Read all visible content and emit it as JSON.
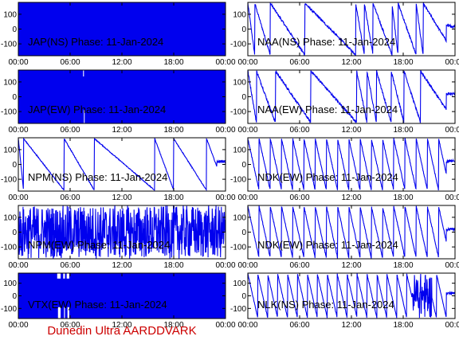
{
  "footer": "Dunedin Ultra AARDDVARK",
  "colors": {
    "trace": "#0000ee",
    "footer": "#cc0000",
    "axes": "#000000"
  },
  "chart_data": [
    {
      "type": "line",
      "title": "JAP(NS) Phase: 11-Jan-2024",
      "x_ticks": [
        "00:00",
        "06:00",
        "12:00",
        "18:00",
        "00:00"
      ],
      "y_ticks": [
        100,
        0,
        -100
      ],
      "ylim": [
        -180,
        180
      ],
      "xlim": [
        0,
        24
      ],
      "pattern": "fill",
      "params": {}
    },
    {
      "type": "line",
      "title": "NAA(NS) Phase: 11-Jan-2024",
      "x_ticks": [
        "00:00",
        "06:00",
        "12:00",
        "18:00",
        "00:00"
      ],
      "y_ticks": [
        100,
        0,
        -100
      ],
      "ylim": [
        -180,
        180
      ],
      "xlim": [
        0,
        24
      ],
      "pattern": "sawtooth",
      "params": {
        "resets": [
          0,
          0.8,
          2.6,
          6.6,
          12.5,
          13.5,
          14.5,
          16.7,
          17.4,
          19.5,
          20.3
        ],
        "amp": 14
      }
    },
    {
      "type": "line",
      "title": "JAP(EW) Phase: 11-Jan-2024",
      "x_ticks": [
        "00:00",
        "06:00",
        "12:00",
        "18:00",
        "00:00"
      ],
      "y_ticks": [
        100,
        0,
        -100
      ],
      "ylim": [
        -180,
        180
      ],
      "xlim": [
        0,
        24
      ],
      "pattern": "fill",
      "params": {
        "notch": [
          7.5,
          7.6
        ]
      }
    },
    {
      "type": "line",
      "title": "NAA(EW) Phase: 11-Jan-2024",
      "x_ticks": [
        "00:00",
        "06:00",
        "12:00",
        "18:00",
        "00:00"
      ],
      "y_ticks": [
        100,
        0,
        -100
      ],
      "ylim": [
        -180,
        180
      ],
      "xlim": [
        0,
        24
      ],
      "pattern": "sawtooth",
      "params": {
        "resets": [
          0,
          1.0,
          3.2,
          7.3,
          12.6,
          13.8,
          14.9,
          16.6,
          18.1,
          20.0
        ],
        "amp": 16
      }
    },
    {
      "type": "line",
      "title": "NPM(NS) Phase: 11-Jan-2024",
      "x_ticks": [
        "00:00",
        "06:00",
        "12:00",
        "18:00",
        "00:00"
      ],
      "y_ticks": [
        100,
        0,
        -100
      ],
      "ylim": [
        -180,
        180
      ],
      "xlim": [
        0,
        24
      ],
      "pattern": "sawtooth",
      "params": {
        "resets": [
          0,
          0.6,
          5.3,
          8.8,
          15.8,
          18.0,
          21.8
        ],
        "amp": 6
      }
    },
    {
      "type": "line",
      "title": "NDK(EW) Phase: 11-Jan-2024",
      "x_ticks": [
        "00:00",
        "06:00",
        "12:00",
        "18:00",
        "00:00"
      ],
      "y_ticks": [
        100,
        0,
        -100
      ],
      "ylim": [
        -180,
        180
      ],
      "xlim": [
        0,
        24
      ],
      "pattern": "sawtooth",
      "params": {
        "period": 1.3,
        "amp": 10
      }
    },
    {
      "type": "line",
      "title": "NPM(EW) Phase: 11-Jan-2024",
      "x_ticks": [
        "00:00",
        "06:00",
        "12:00",
        "18:00",
        "00:00"
      ],
      "y_ticks": [
        100,
        0,
        -100
      ],
      "ylim": [
        -180,
        180
      ],
      "xlim": [
        0,
        24
      ],
      "pattern": "noise",
      "params": {
        "amp": 1
      }
    },
    {
      "type": "line",
      "title": "NDK(EW) Phase: 11-Jan-2024",
      "x_ticks": [
        "00:00",
        "06:00",
        "12:00",
        "18:00",
        "00:00"
      ],
      "y_ticks": [
        100,
        0,
        -100
      ],
      "ylim": [
        -180,
        180
      ],
      "xlim": [
        0,
        24
      ],
      "pattern": "sawtooth",
      "params": {
        "period": 1.3,
        "amp": 10
      }
    },
    {
      "type": "line",
      "title": "VTX(EW) Phase: 11-Jan-2024",
      "x_ticks": [
        "00:00",
        "06:00",
        "12:00",
        "18:00",
        "00:00"
      ],
      "y_ticks": [
        100,
        0,
        -100
      ],
      "ylim": [
        -180,
        180
      ],
      "xlim": [
        0,
        24
      ],
      "pattern": "fill",
      "params": {
        "notches": [
          [
            4.5,
            4.9
          ],
          [
            5.2,
            5.4
          ],
          [
            5.6,
            5.9
          ]
        ]
      }
    },
    {
      "type": "line",
      "title": "NLK(NS) Phase: 11-Jan-2024",
      "x_ticks": [
        "00:00",
        "06:00",
        "12:00",
        "18:00",
        "00:00"
      ],
      "y_ticks": [
        100,
        0,
        -100
      ],
      "ylim": [
        -180,
        180
      ],
      "xlim": [
        0,
        24
      ],
      "pattern": "sawtooth",
      "params": {
        "period": 1.15,
        "amp": 8,
        "noiseFrom": 19.0,
        "noiseTo": 21.3
      }
    }
  ]
}
